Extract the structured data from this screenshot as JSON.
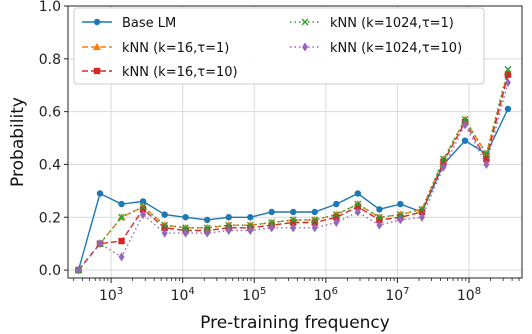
{
  "chart_data": {
    "type": "line",
    "xlabel": "Pre-training frequency",
    "ylabel": "Probability",
    "xscale": "log",
    "xlim": [
      250,
      550000000
    ],
    "ylim": [
      -0.03,
      1.0
    ],
    "grid": true,
    "legend_position": "top-left",
    "x": [
      350,
      700,
      1400,
      2800,
      5600,
      11000,
      22000,
      44000,
      88000,
      175000,
      350000,
      700000,
      1400000,
      2800000,
      5600000,
      11000000,
      22000000,
      44000000,
      88000000,
      175000000,
      350000000
    ],
    "x_ticks": [
      {
        "value": 1000,
        "base": "10",
        "exp": "3"
      },
      {
        "value": 10000,
        "base": "10",
        "exp": "4"
      },
      {
        "value": 100000,
        "base": "10",
        "exp": "5"
      },
      {
        "value": 1000000,
        "base": "10",
        "exp": "6"
      },
      {
        "value": 10000000,
        "base": "10",
        "exp": "7"
      },
      {
        "value": 100000000,
        "base": "10",
        "exp": "8"
      }
    ],
    "y_ticks": [
      {
        "value": 0.0,
        "label": "0.0"
      },
      {
        "value": 0.2,
        "label": "0.2"
      },
      {
        "value": 0.4,
        "label": "0.4"
      },
      {
        "value": 0.6,
        "label": "0.6"
      },
      {
        "value": 0.8,
        "label": "0.8"
      },
      {
        "value": 1.0,
        "label": "1.0"
      }
    ],
    "series": [
      {
        "name": "Base LM",
        "color": "#1f77b4",
        "dash": "",
        "marker": "circle",
        "values": [
          0.0,
          0.29,
          0.25,
          0.26,
          0.21,
          0.2,
          0.19,
          0.2,
          0.2,
          0.22,
          0.22,
          0.22,
          0.25,
          0.29,
          0.23,
          0.25,
          0.22,
          0.4,
          0.49,
          0.44,
          0.61
        ]
      },
      {
        "name": "kNN (k=16,τ=1)",
        "color": "#ff7f0e",
        "dash": "6,3",
        "marker": "triangle",
        "values": [
          0.0,
          0.1,
          0.2,
          0.24,
          0.17,
          0.16,
          0.16,
          0.17,
          0.17,
          0.18,
          0.19,
          0.19,
          0.21,
          0.25,
          0.2,
          0.21,
          0.23,
          0.42,
          0.57,
          0.44,
          0.75
        ]
      },
      {
        "name": "kNN (k=16,τ=10)",
        "color": "#d62728",
        "dash": "6,3",
        "marker": "square",
        "values": [
          0.0,
          0.1,
          0.11,
          0.23,
          0.16,
          0.15,
          0.15,
          0.16,
          0.16,
          0.17,
          0.18,
          0.18,
          0.2,
          0.24,
          0.19,
          0.2,
          0.22,
          0.41,
          0.56,
          0.42,
          0.74
        ]
      },
      {
        "name": "kNN (k=1024,τ=1)",
        "color": "#2ca02c",
        "dash": "1.5,3",
        "marker": "x",
        "values": [
          0.0,
          0.1,
          0.2,
          0.24,
          0.17,
          0.16,
          0.16,
          0.17,
          0.17,
          0.18,
          0.19,
          0.19,
          0.21,
          0.25,
          0.2,
          0.21,
          0.23,
          0.42,
          0.57,
          0.44,
          0.76
        ]
      },
      {
        "name": "kNN (k=1024,τ=10)",
        "color": "#9467bd",
        "dash": "1.5,3",
        "marker": "diamond",
        "values": [
          0.0,
          0.1,
          0.05,
          0.21,
          0.14,
          0.14,
          0.14,
          0.15,
          0.15,
          0.16,
          0.16,
          0.16,
          0.18,
          0.22,
          0.17,
          0.19,
          0.2,
          0.39,
          0.55,
          0.4,
          0.71
        ]
      }
    ]
  }
}
